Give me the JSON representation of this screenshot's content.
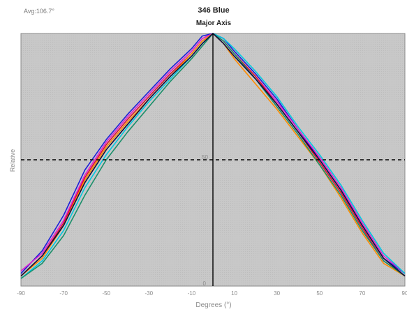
{
  "chart_data": {
    "type": "line",
    "title": "346 Blue",
    "subtitle": "Major Axis",
    "corner_label": "Avg:106.7°",
    "xlabel": "Degrees (°)",
    "ylabel": "Relative",
    "xlim": [
      -90,
      90
    ],
    "ylim": [
      0,
      100
    ],
    "x_ticks": [
      "-90",
      "-70",
      "-50",
      "-30",
      "-10",
      "10",
      "30",
      "50",
      "70",
      "90"
    ],
    "x_tick_values": [
      -90,
      -70,
      -50,
      -30,
      -10,
      10,
      30,
      50,
      70,
      90
    ],
    "y_mid_label": "50",
    "y_zero_label": "0",
    "reference_lines": {
      "horizontal_y": 50,
      "vertical_x": 0
    },
    "grid": false,
    "background_color": "#c8c8c8",
    "x": [
      -90,
      -80,
      -70,
      -60,
      -50,
      -40,
      -30,
      -20,
      -10,
      -5,
      0,
      5,
      10,
      20,
      30,
      40,
      50,
      60,
      70,
      80,
      90
    ],
    "series": [
      {
        "color": "#1c1cd9",
        "values": [
          5,
          14,
          28,
          46,
          58,
          68,
          77,
          86,
          94,
          99,
          100,
          98,
          93,
          84,
          74,
          62,
          50,
          38,
          24,
          11,
          5
        ]
      },
      {
        "color": "#e01fd0",
        "values": [
          6,
          13,
          26,
          44,
          57,
          67,
          76,
          85,
          93,
          98,
          100,
          97,
          92,
          83,
          73,
          62,
          51,
          39,
          25,
          12,
          5
        ]
      },
      {
        "color": "#e0102a",
        "values": [
          4,
          12,
          25,
          43,
          56,
          66,
          75,
          84,
          92,
          97,
          100,
          97,
          92,
          83,
          72,
          61,
          49,
          37,
          23,
          10,
          4
        ]
      },
      {
        "color": "#ff8c00",
        "values": [
          4,
          11,
          24,
          42,
          55,
          65,
          74,
          83,
          92,
          97,
          100,
          96,
          90,
          80,
          70,
          59,
          48,
          35,
          21,
          9,
          4
        ]
      },
      {
        "color": "#00c8e0",
        "values": [
          3,
          10,
          22,
          39,
          52,
          63,
          73,
          82,
          91,
          96,
          100,
          98,
          94,
          85,
          75,
          63,
          52,
          40,
          26,
          13,
          5
        ]
      },
      {
        "color": "#1a8f6a",
        "values": [
          3,
          9,
          20,
          36,
          50,
          61,
          71,
          81,
          90,
          95,
          100,
          97,
          92,
          82,
          71,
          60,
          48,
          36,
          22,
          10,
          4
        ]
      },
      {
        "color": "#101040",
        "values": [
          4,
          12,
          24,
          41,
          54,
          64,
          74,
          83,
          91,
          96,
          100,
          96,
          91,
          82,
          72,
          61,
          50,
          38,
          24,
          11,
          4
        ]
      }
    ]
  }
}
